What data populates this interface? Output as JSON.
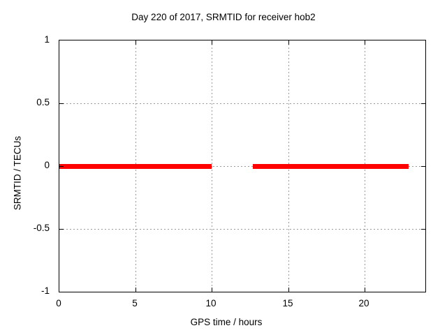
{
  "chart_data": {
    "type": "line",
    "title": "Day 220 of 2017, SRMTID for receiver hob2",
    "xlabel": "GPS time / hours",
    "ylabel": "SRMTID / TECUs",
    "xlim": [
      0,
      24
    ],
    "ylim": [
      -1,
      1
    ],
    "x_ticks": [
      0,
      5,
      10,
      15,
      20
    ],
    "y_ticks": [
      1,
      0.5,
      0,
      -0.5,
      -1
    ],
    "grid": true,
    "legend_position": "none",
    "background_color": "#ffffff",
    "axis_color": "#000000",
    "grid_color": "#9a9a9a",
    "series": [
      {
        "name": "SRMTID",
        "color": "#ff0000",
        "style": "thick horizontal line at y=0 with data gap",
        "segments": [
          {
            "x_start": 0.0,
            "x_end": 10.0,
            "y": 0
          },
          {
            "x_start": 12.7,
            "x_end": 22.9,
            "y": 0
          }
        ]
      }
    ]
  }
}
